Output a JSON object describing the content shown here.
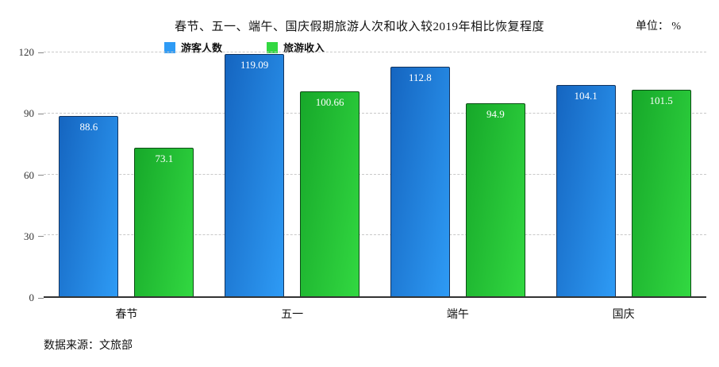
{
  "title": "春节、五一、端午、国庆假期旅游人次和收入较2019年相比恢复程度",
  "unit_label": "单位： %",
  "source": "数据来源：文旅部",
  "chart_data": {
    "type": "bar",
    "categories": [
      "春节",
      "五一",
      "端午",
      "国庆"
    ],
    "series": [
      {
        "name": "游客人数",
        "values": [
          88.6,
          119.09,
          112.8,
          104.1
        ],
        "color": "#2e9bf5",
        "color_dark": "#1565c0",
        "border": "#12335e"
      },
      {
        "name": "旅游收入",
        "values": [
          73.1,
          100.66,
          94.9,
          101.5
        ],
        "color": "#32d841",
        "color_dark": "#17a82a",
        "border": "#0c4d15"
      }
    ],
    "xlabel": "",
    "ylabel": "",
    "ylim": [
      0,
      120
    ],
    "yticks": [
      0,
      30,
      60,
      90,
      120
    ],
    "grid": true,
    "legend_position": "top"
  }
}
